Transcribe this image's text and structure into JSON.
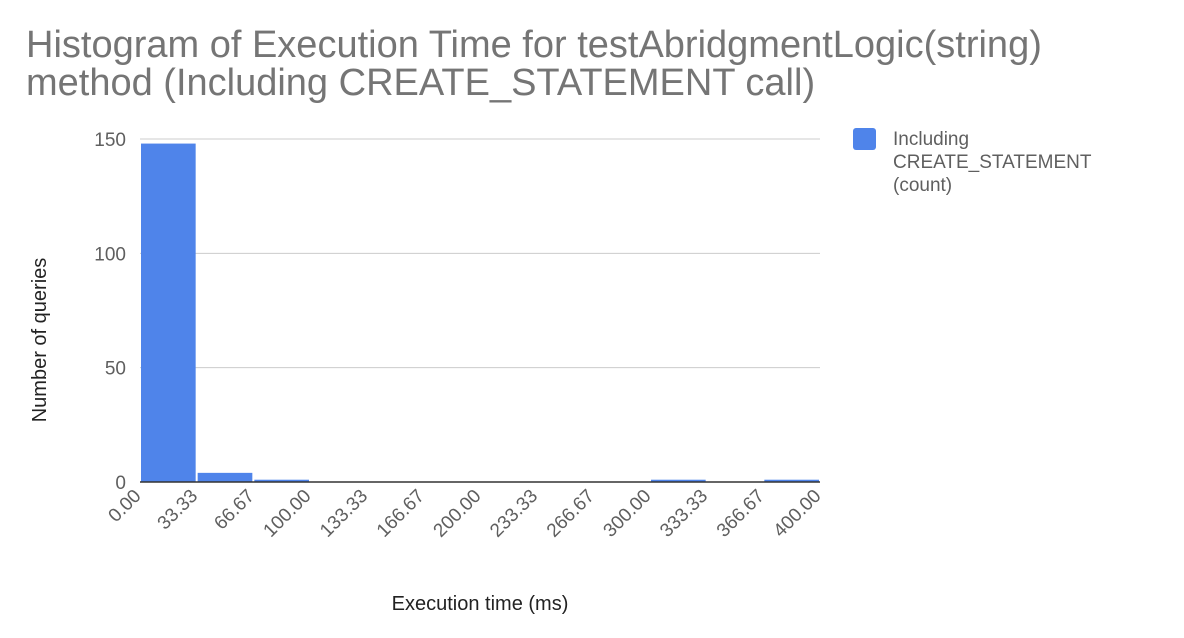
{
  "chart_data": {
    "type": "bar",
    "title": "Histogram of Execution Time for testAbridgmentLogic(string) method  (Including CREATE_STATEMENT call)",
    "xlabel": "Execution time (ms)",
    "ylabel": "Number of queries",
    "x_ticks": [
      "0.00",
      "33.33",
      "66.67",
      "100.00",
      "133.33",
      "166.67",
      "200.00",
      "233.33",
      "266.67",
      "300.00",
      "333.33",
      "366.67",
      "400.00"
    ],
    "bins": [
      {
        "start": 0.0,
        "end": 33.33
      },
      {
        "start": 33.33,
        "end": 66.67
      },
      {
        "start": 66.67,
        "end": 100.0
      },
      {
        "start": 100.0,
        "end": 133.33
      },
      {
        "start": 133.33,
        "end": 166.67
      },
      {
        "start": 166.67,
        "end": 200.0
      },
      {
        "start": 200.0,
        "end": 233.33
      },
      {
        "start": 233.33,
        "end": 266.67
      },
      {
        "start": 266.67,
        "end": 300.0
      },
      {
        "start": 300.0,
        "end": 333.33
      },
      {
        "start": 333.33,
        "end": 366.67
      },
      {
        "start": 366.67,
        "end": 400.0
      }
    ],
    "series": [
      {
        "name": "Including CREATE_STATEMENT (count)",
        "name_lines": [
          "Including",
          "CREATE_STATEMENT",
          "(count)"
        ],
        "color": "#4f84ea",
        "values": [
          148,
          4,
          1,
          0,
          0,
          0,
          0,
          0,
          0,
          1,
          0,
          1
        ]
      }
    ],
    "y_ticks": [
      "0",
      "50",
      "100",
      "150"
    ],
    "xlim": [
      0,
      400
    ],
    "ylim": [
      0,
      150
    ],
    "grid": true,
    "legend_position": "right"
  }
}
